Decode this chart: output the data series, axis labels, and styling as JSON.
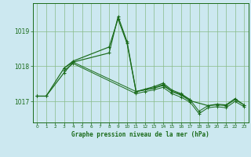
{
  "title": "Graphe pression niveau de la mer (hPa)",
  "bg_color": "#cce8f0",
  "grid_color": "#88bb88",
  "line_color": "#1a6b1a",
  "xlim": [
    -0.5,
    23.5
  ],
  "ylim": [
    1016.4,
    1019.8
  ],
  "yticks": [
    1017,
    1018,
    1019
  ],
  "xticks": [
    0,
    1,
    2,
    3,
    4,
    5,
    6,
    7,
    8,
    9,
    10,
    11,
    12,
    13,
    14,
    15,
    16,
    17,
    18,
    19,
    20,
    21,
    22,
    23
  ],
  "line1_x": [
    0,
    1,
    3,
    4,
    8,
    9,
    10,
    11,
    13,
    14,
    15,
    16,
    17
  ],
  "line1_y": [
    1017.15,
    1017.15,
    1017.95,
    1018.15,
    1018.55,
    1019.35,
    1018.65,
    1017.28,
    1017.42,
    1017.52,
    1017.32,
    1017.22,
    1017.05
  ],
  "line2_x": [
    0,
    1,
    3,
    4,
    8,
    9,
    10,
    11,
    13,
    14,
    15,
    16,
    17,
    19,
    20,
    21,
    22,
    23
  ],
  "line2_y": [
    1017.15,
    1017.15,
    1017.82,
    1018.12,
    1018.38,
    1019.42,
    1018.7,
    1017.28,
    1017.38,
    1017.48,
    1017.28,
    1017.18,
    1017.02,
    1016.88,
    1016.92,
    1016.9,
    1017.08,
    1016.9
  ],
  "line3_x": [
    3,
    4,
    11,
    12,
    13,
    14,
    15,
    16,
    17,
    18,
    19,
    20,
    21,
    22,
    23
  ],
  "line3_y": [
    1017.95,
    1018.12,
    1017.28,
    1017.33,
    1017.38,
    1017.45,
    1017.28,
    1017.2,
    1017.05,
    1016.72,
    1016.88,
    1016.9,
    1016.88,
    1017.05,
    1016.9
  ],
  "line4_x": [
    3,
    4,
    11,
    12,
    13,
    14,
    15,
    16,
    17,
    18,
    19,
    20,
    21,
    22,
    23
  ],
  "line4_y": [
    1017.88,
    1018.08,
    1017.22,
    1017.28,
    1017.33,
    1017.4,
    1017.22,
    1017.12,
    1016.98,
    1016.65,
    1016.82,
    1016.85,
    1016.82,
    1017.0,
    1016.85
  ]
}
